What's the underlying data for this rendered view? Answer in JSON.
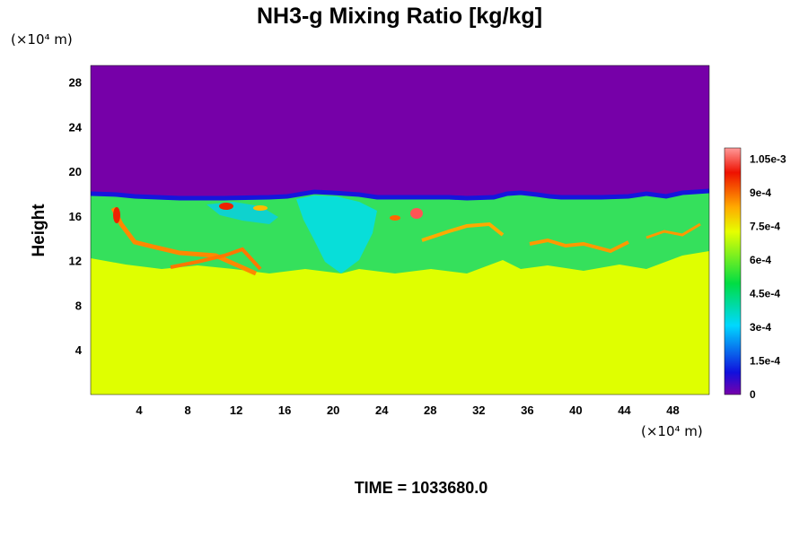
{
  "chart_data": {
    "type": "heatmap",
    "title": "NH3-g Mixing Ratio [kg/kg]",
    "xlabel": "",
    "ylabel": "Height",
    "x_unit": "(×10⁴ m)",
    "y_unit": "(×10⁴ m)",
    "xlim": [
      0,
      51
    ],
    "ylim": [
      0,
      29.5
    ],
    "x_ticks": [
      "4",
      "8",
      "12",
      "16",
      "20",
      "24",
      "28",
      "32",
      "36",
      "40",
      "44",
      "48"
    ],
    "y_ticks": [
      "4",
      "8",
      "12",
      "16",
      "20",
      "24",
      "28"
    ],
    "colorbar": {
      "range": [
        0,
        0.0011
      ],
      "tick_labels": [
        "0",
        "1.5e-4",
        "3e-4",
        "4.5e-4",
        "6e-4",
        "7.5e-4",
        "9e-4",
        "1.05e-3"
      ],
      "tick_values": [
        0,
        0.00015,
        0.0003,
        0.00045,
        0.0006,
        0.00075,
        0.0009,
        0.00105
      ],
      "colors": [
        "#7700aa",
        "#1010dd",
        "#00d8ff",
        "#00dd44",
        "#e6ff00",
        "#ffaa00",
        "#ee1100",
        "#ff9999"
      ]
    },
    "field_summary": {
      "lower_layer_value": 0.00075,
      "upper_layer_value": 0,
      "interface_height": 17.5
    },
    "footer": "TIME = 1033680.0"
  }
}
